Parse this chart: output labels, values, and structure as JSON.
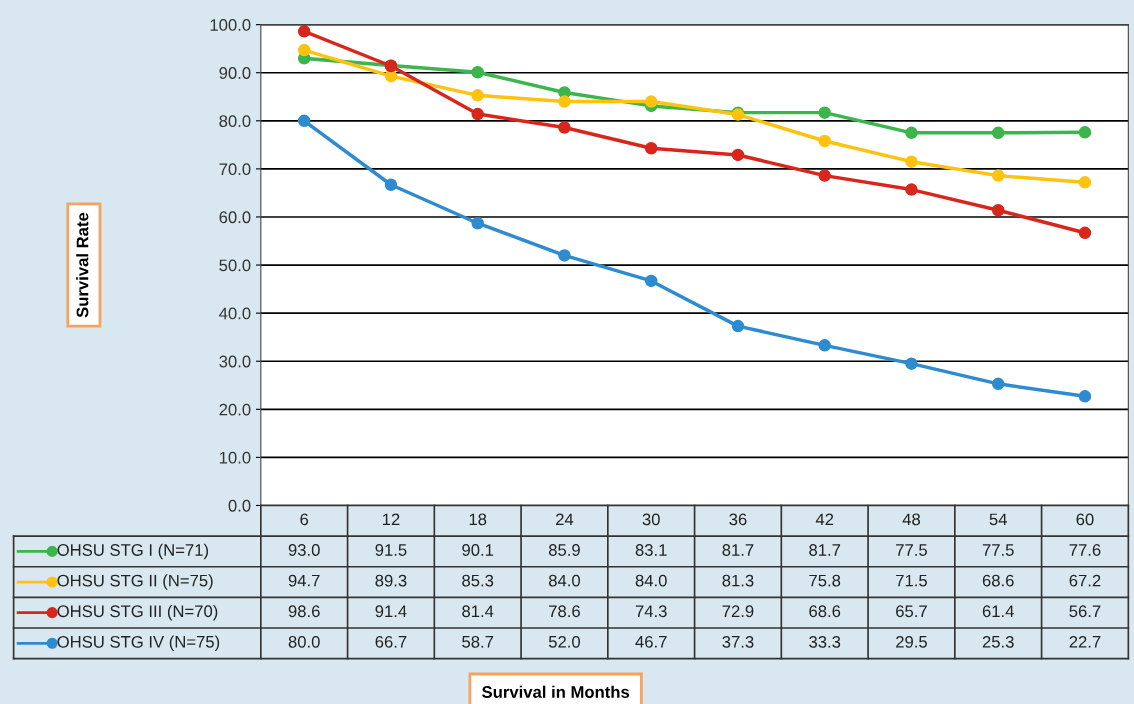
{
  "chart_data": {
    "type": "line",
    "annotations": [
      "Survival Rate",
      "Survival in Months"
    ],
    "categories": [
      "6",
      "12",
      "18",
      "24",
      "30",
      "36",
      "42",
      "48",
      "54",
      "60"
    ],
    "series": [
      {
        "name": "OHSU STG I (N=71)",
        "color": "#3cb54a",
        "values": [
          93.0,
          91.5,
          90.1,
          85.9,
          83.1,
          81.7,
          81.7,
          77.5,
          77.5,
          77.6
        ],
        "value_labels": [
          "93.0",
          "91.5",
          "90.1",
          "85.9",
          "83.1",
          "81.7",
          "81.7",
          "77.5",
          "77.5",
          "77.6"
        ]
      },
      {
        "name": "OHSU STG II (N=75)",
        "color": "#ffc20e",
        "values": [
          94.7,
          89.3,
          85.3,
          84.0,
          84.0,
          81.3,
          75.8,
          71.5,
          68.6,
          67.2
        ],
        "value_labels": [
          "94.7",
          "89.3",
          "85.3",
          "84.0",
          "84.0",
          "81.3",
          "75.8",
          "71.5",
          "68.6",
          "67.2"
        ]
      },
      {
        "name": "OHSU STG III (N=70)",
        "color": "#d9261c",
        "values": [
          98.6,
          91.4,
          81.4,
          78.6,
          74.3,
          72.9,
          68.6,
          65.7,
          61.4,
          56.7
        ],
        "value_labels": [
          "98.6",
          "91.4",
          "81.4",
          "78.6",
          "74.3",
          "72.9",
          "68.6",
          "65.7",
          "61.4",
          "56.7"
        ]
      },
      {
        "name": "OHSU STG IV (N=75)",
        "color": "#2e8bd0",
        "values": [
          80.0,
          66.7,
          58.7,
          52.0,
          46.7,
          37.3,
          33.3,
          29.5,
          25.3,
          22.7
        ],
        "value_labels": [
          "80.0",
          "66.7",
          "58.7",
          "52.0",
          "46.7",
          "37.3",
          "33.3",
          "29.5",
          "25.3",
          "22.7"
        ]
      }
    ],
    "ylim": [
      0,
      100
    ],
    "yticks": [
      {
        "value": 0,
        "label": "0.0"
      },
      {
        "value": 10,
        "label": "10.0"
      },
      {
        "value": 20,
        "label": "20.0"
      },
      {
        "value": 30,
        "label": "30.0"
      },
      {
        "value": 40,
        "label": "40.0"
      },
      {
        "value": 50,
        "label": "50.0"
      },
      {
        "value": 60,
        "label": "60.0"
      },
      {
        "value": 70,
        "label": "70.0"
      },
      {
        "value": 80,
        "label": "80.0"
      },
      {
        "value": 90,
        "label": "90.0"
      },
      {
        "value": 100,
        "label": "100.0"
      }
    ],
    "grid": "y",
    "marker": "circle",
    "line_style": "solid",
    "legend": "bottom"
  }
}
